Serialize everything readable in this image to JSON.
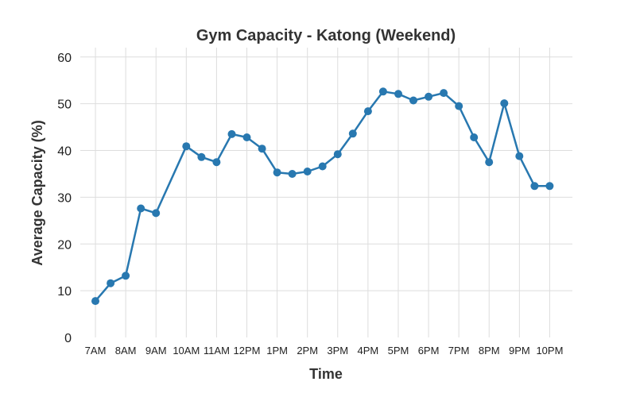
{
  "chart_data": {
    "type": "line",
    "title": "Gym Capacity - Katong (Weekend)",
    "xlabel": "Time",
    "ylabel": "Average Capacity (%)",
    "ylim": [
      0,
      62
    ],
    "yticks": [
      0,
      10,
      20,
      30,
      40,
      50,
      60
    ],
    "x_tick_labels": [
      "7AM",
      "8AM",
      "9AM",
      "10AM",
      "11AM",
      "12PM",
      "1PM",
      "2PM",
      "3PM",
      "4PM",
      "5PM",
      "6PM",
      "7PM",
      "8PM",
      "9PM",
      "10PM"
    ],
    "x": [
      7.0,
      7.5,
      8.0,
      8.5,
      9.0,
      10.0,
      10.5,
      11.0,
      11.5,
      12.0,
      12.5,
      13.0,
      13.5,
      14.0,
      14.5,
      15.0,
      15.5,
      16.0,
      16.5,
      17.0,
      17.5,
      18.0,
      18.5,
      19.0,
      19.5,
      20.0,
      20.5,
      21.0,
      21.5,
      22.0
    ],
    "series": [
      {
        "values": [
          7.8,
          11.6,
          13.2,
          27.6,
          26.6,
          40.9,
          38.6,
          37.5,
          43.5,
          42.8,
          40.4,
          35.3,
          35.0,
          35.5,
          36.6,
          39.2,
          43.6,
          48.4,
          52.6,
          52.1,
          50.7,
          51.5,
          52.3,
          49.5,
          42.8,
          37.5,
          50.1,
          38.8,
          32.4,
          32.4
        ]
      }
    ],
    "grid": true,
    "line_color": "#2878b0"
  }
}
